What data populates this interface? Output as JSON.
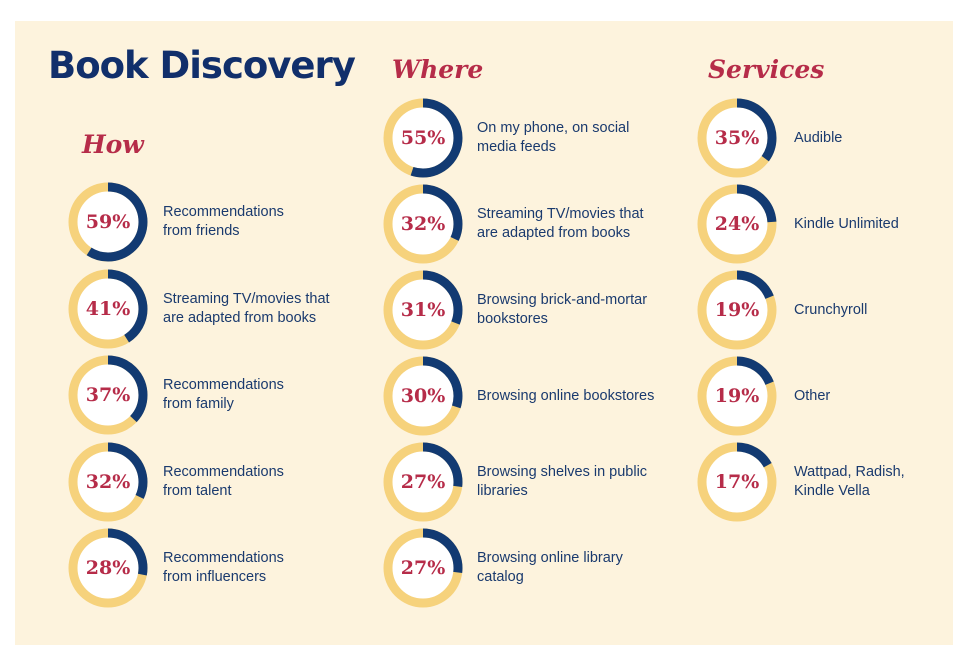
{
  "colors": {
    "panel": "#fdf3dd",
    "ring_track": "#f6d27c",
    "ring_fill": "#123a72",
    "percent_text": "#b62c49",
    "title": "#112f6b"
  },
  "title": "Book Discovery",
  "chart_data": [
    {
      "type": "pie",
      "title": "How",
      "categories": [
        "Recommendations\nfrom friends",
        "Streaming TV/movies that\nare adapted from books",
        "Recommendations\nfrom family",
        "Recommendations\nfrom talent",
        "Recommendations\nfrom influencers"
      ],
      "values": [
        59,
        41,
        37,
        32,
        28
      ],
      "value_labels": [
        "59%",
        "41%",
        "37%",
        "32%",
        "28%"
      ]
    },
    {
      "type": "pie",
      "title": "Where",
      "categories": [
        "On my phone, on social\nmedia feeds",
        "Streaming TV/movies that\nare adapted from books",
        "Browsing brick-and-mortar\nbookstores",
        "Browsing online bookstores",
        "Browsing shelves in public\nlibraries",
        "Browsing online library\ncatalog"
      ],
      "values": [
        55,
        32,
        31,
        30,
        27,
        27
      ],
      "value_labels": [
        "55%",
        "32%",
        "31%",
        "30%",
        "27%",
        "27%"
      ]
    },
    {
      "type": "pie",
      "title": "Services",
      "categories": [
        "Audible",
        "Kindle Unlimited",
        "Crunchyroll",
        "Other",
        "Wattpad, Radish,\nKindle Vella"
      ],
      "values": [
        35,
        24,
        19,
        19,
        17
      ],
      "value_labels": [
        "35%",
        "24%",
        "19%",
        "19%",
        "17%"
      ]
    }
  ]
}
